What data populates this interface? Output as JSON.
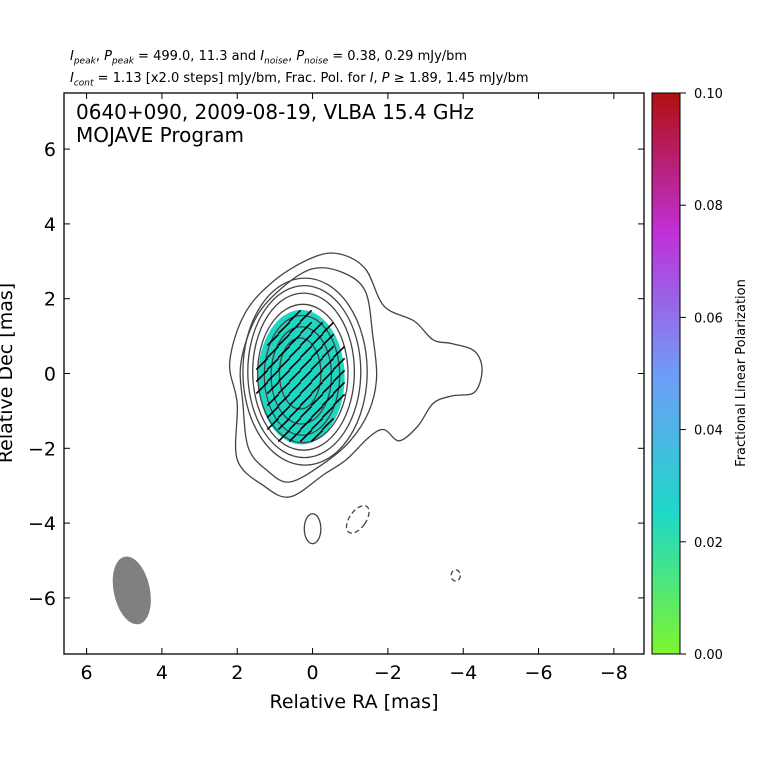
{
  "header": {
    "line1": {
      "I_label": "I",
      "I_peak_sub": "peak",
      "P_label": "P",
      "P_peak_sub": "peak",
      "peak_values": "499.0, 11.3",
      "and_text": "and",
      "I_noise_sub": "noise",
      "P_noise_sub": "noise",
      "noise_values": "0.38, 0.29 mJy/bm"
    },
    "line2": {
      "I_label": "I",
      "cont_sub": "cont",
      "cont_text": "1.13 [x2.0 steps] mJy/bm, Frac. Pol. for",
      "threshold_text": "1.89, 1.45 mJy/bm"
    }
  },
  "chart_data": {
    "type": "heatmap",
    "title": "0640+090, 2009-08-19, VLBA 15.4 GHz",
    "subtitle": "MOJAVE Program",
    "xlabel": "Relative RA [mas]",
    "ylabel": "Relative Dec [mas]",
    "xlim": [
      6.6,
      -8.8
    ],
    "ylim": [
      -7.5,
      7.5
    ],
    "x_ticks": [
      6,
      4,
      2,
      0,
      -2,
      -4,
      -6,
      -8
    ],
    "x_tick_labels": [
      "6",
      "4",
      "2",
      "0",
      "−2",
      "−4",
      "−6",
      "−8"
    ],
    "y_ticks": [
      6,
      4,
      2,
      0,
      -2,
      -4,
      -6
    ],
    "y_tick_labels": [
      "6",
      "4",
      "2",
      "0",
      "−2",
      "−4",
      "−6"
    ],
    "colorbar": {
      "label": "Fractional Linear Polarization",
      "range": [
        0.0,
        0.1
      ],
      "ticks": [
        0.0,
        0.02,
        0.04,
        0.06,
        0.08,
        0.1
      ],
      "tick_labels": [
        "0.00",
        "0.02",
        "0.04",
        "0.06",
        "0.08",
        "0.10"
      ],
      "colors": [
        "#7ff52e",
        "#1ed8c8",
        "#6f9cf8",
        "#c030d8",
        "#b01010"
      ]
    },
    "polarization_region": {
      "center": [
        0.3,
        -0.1
      ],
      "semi_axes": [
        1.15,
        1.8
      ],
      "fractional_pol": 0.022,
      "color": "#1ed6c2"
    },
    "contours": [
      {
        "level": 1,
        "style": "solid",
        "outline": [
          [
            2.0,
            -2.3
          ],
          [
            2.0,
            -0.8
          ],
          [
            2.2,
            0.3
          ],
          [
            1.8,
            1.6
          ],
          [
            1.0,
            2.5
          ],
          [
            0.0,
            3.1
          ],
          [
            -0.7,
            3.2
          ],
          [
            -1.4,
            2.8
          ],
          [
            -1.9,
            1.8
          ],
          [
            -2.7,
            1.4
          ],
          [
            -3.2,
            0.9
          ],
          [
            -3.7,
            0.8
          ],
          [
            -4.3,
            0.6
          ],
          [
            -4.5,
            0.1
          ],
          [
            -4.3,
            -0.5
          ],
          [
            -3.7,
            -0.6
          ],
          [
            -3.2,
            -0.8
          ],
          [
            -2.8,
            -1.4
          ],
          [
            -2.3,
            -1.8
          ],
          [
            -1.9,
            -1.5
          ],
          [
            -1.5,
            -1.7
          ],
          [
            -0.9,
            -2.3
          ],
          [
            -0.3,
            -2.7
          ],
          [
            0.6,
            -3.3
          ],
          [
            1.3,
            -3.0
          ]
        ]
      },
      {
        "level": 2,
        "style": "solid",
        "outline": [
          [
            1.7,
            -2.0
          ],
          [
            1.85,
            -0.8
          ],
          [
            1.9,
            0.3
          ],
          [
            1.5,
            1.5
          ],
          [
            0.8,
            2.3
          ],
          [
            0.0,
            2.8
          ],
          [
            -0.8,
            2.7
          ],
          [
            -1.4,
            2.2
          ],
          [
            -1.6,
            1.0
          ],
          [
            -1.7,
            -0.1
          ],
          [
            -1.5,
            -1.0
          ],
          [
            -1.0,
            -1.8
          ],
          [
            -0.3,
            -2.4
          ],
          [
            0.6,
            -2.9
          ],
          [
            1.2,
            -2.6
          ]
        ]
      },
      {
        "level": 3,
        "center": [
          0.2,
          0.05
        ],
        "semi_axes": [
          1.65,
          2.5
        ],
        "style": "solid"
      },
      {
        "level": 4,
        "center": [
          0.22,
          0.05
        ],
        "semi_axes": [
          1.5,
          2.3
        ],
        "style": "solid"
      },
      {
        "level": 5,
        "center": [
          0.24,
          0.05
        ],
        "semi_axes": [
          1.35,
          2.1
        ],
        "style": "solid"
      },
      {
        "level": 6,
        "center": [
          0.26,
          0.0
        ],
        "semi_axes": [
          1.2,
          1.85
        ],
        "style": "solid"
      },
      {
        "level": 7,
        "center": [
          0.28,
          -0.05
        ],
        "semi_axes": [
          1.0,
          1.6
        ],
        "style": "solid"
      },
      {
        "level": 8,
        "center": [
          0.3,
          -0.05
        ],
        "semi_axes": [
          0.8,
          1.3
        ],
        "style": "solid"
      },
      {
        "level": 9,
        "center": [
          0.33,
          0.0
        ],
        "semi_axes": [
          0.55,
          0.95
        ],
        "style": "solid"
      },
      {
        "level": 1,
        "center": [
          0.0,
          -4.15
        ],
        "semi_axes": [
          0.22,
          0.4
        ],
        "style": "solid"
      },
      {
        "level": -1,
        "center": [
          -1.2,
          -3.9
        ],
        "semi_axes": [
          0.22,
          0.42
        ],
        "angle": 35,
        "style": "dashed"
      },
      {
        "level": -1,
        "center": [
          -3.8,
          -5.4
        ],
        "semi_axes": [
          0.12,
          0.15
        ],
        "style": "dashed"
      }
    ],
    "evpa_ticks": {
      "angle_deg": 45,
      "color": "#000000",
      "count": 38
    },
    "beam": {
      "center": [
        4.8,
        -5.8
      ],
      "semi_axes": [
        0.48,
        0.92
      ],
      "angle_deg": -12,
      "color": "#808080"
    }
  }
}
